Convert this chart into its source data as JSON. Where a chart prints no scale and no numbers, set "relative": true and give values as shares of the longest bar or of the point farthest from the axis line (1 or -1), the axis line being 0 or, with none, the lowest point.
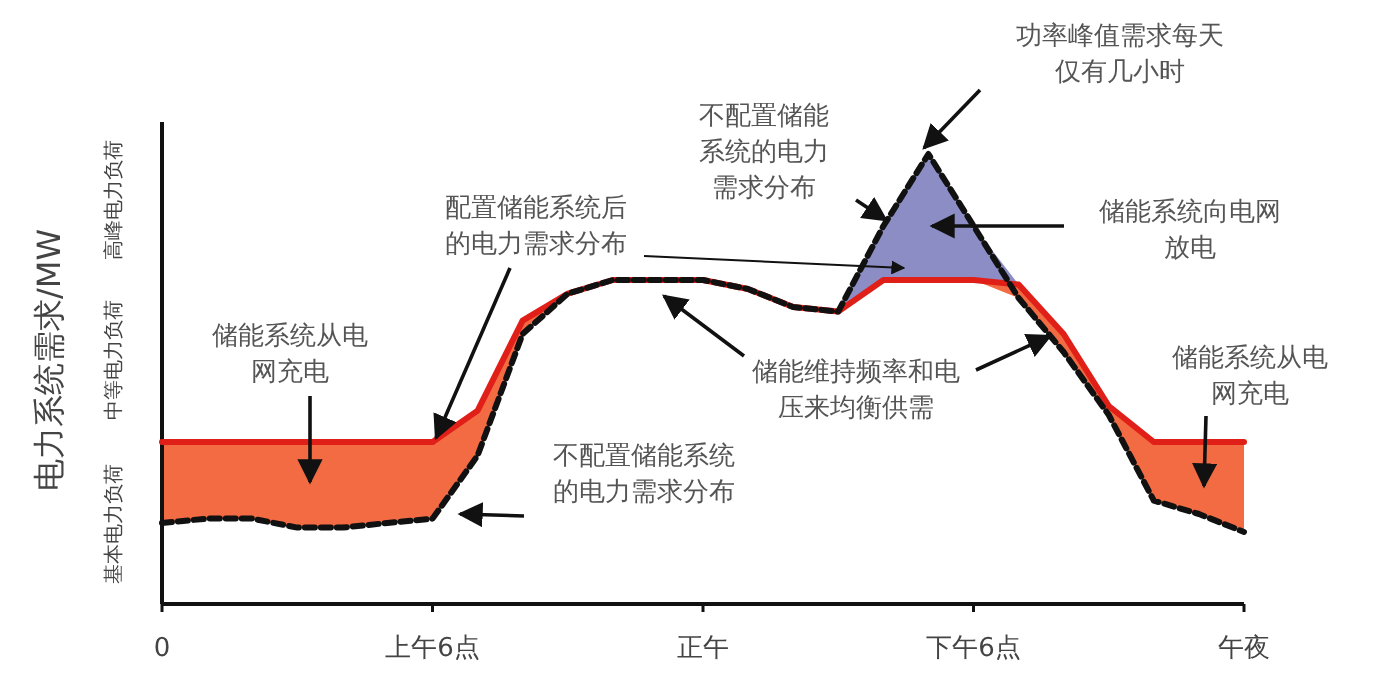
{
  "chart_data": {
    "type": "line",
    "ylabel": "电力系统需求/MW",
    "relative": true,
    "categories": [
      "0",
      null,
      null,
      null,
      null,
      null,
      "上午6点",
      null,
      null,
      null,
      null,
      null,
      "正午",
      null,
      null,
      null,
      null,
      null,
      "下午6点",
      null,
      null,
      null,
      null,
      null,
      "午夜"
    ],
    "colors": [
      "#f26b43",
      "#8b8dc4"
    ],
    "series": [
      {
        "color": "#e02018",
        "line_style": "solid",
        "values": [
          0.36,
          0.36,
          0.36,
          0.36,
          0.36,
          0.36,
          0.36,
          0.43,
          0.63,
          0.69,
          0.72,
          0.72,
          0.72,
          0.7,
          0.66,
          0.65,
          0.72,
          0.72,
          0.72,
          0.71,
          0.6,
          0.44,
          0.36,
          0.36,
          0.36
        ]
      },
      {
        "color": "#111111",
        "line_style": "dashed",
        "values": [
          0.18,
          0.19,
          0.19,
          0.17,
          0.17,
          0.18,
          0.19,
          0.33,
          0.6,
          0.69,
          0.72,
          0.72,
          0.72,
          0.7,
          0.66,
          0.65,
          0.84,
          1.0,
          0.84,
          0.68,
          0.56,
          0.42,
          0.23,
          0.2,
          0.16
        ]
      }
    ],
    "annotations": [
      "高峰电力负荷",
      "中等电力负荷",
      "基本电力负荷",
      "功率峰值需求每天仅有几小时",
      "不配置储能系统的电力需求分布",
      "配置储能系统后的电力需求分布",
      "储能系统从电网充电",
      "不配置储能系统的电力需求分布",
      "储能系统向电网放电",
      "储能维持频率和电压来均衡供需",
      "储能系统从电网充电"
    ]
  }
}
